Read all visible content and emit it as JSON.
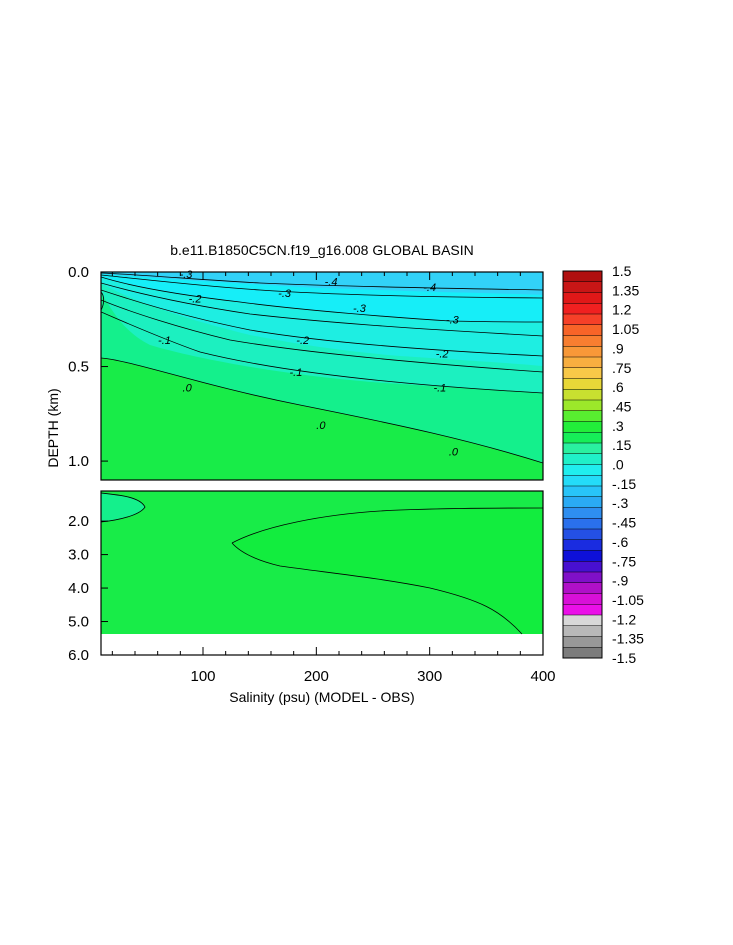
{
  "chart_data": {
    "type": "heatmap",
    "title": "b.e11.B1850C5CN.f19_g16.008 GLOBAL BASIN",
    "xlabel": "Salinity (psu) (MODEL - OBS)",
    "ylabel": "DEPTH (km)",
    "xlim": [
      10,
      400
    ],
    "x_ticks": [
      "100",
      "200",
      "300",
      "400"
    ],
    "x_tick_values": [
      100,
      200,
      300,
      400
    ],
    "upper_panel": {
      "ylim": [
        0.0,
        1.1
      ],
      "y_ticks": [
        "0.0",
        "0.5",
        "1.0"
      ],
      "y_tick_values": [
        0.0,
        0.5,
        1.0
      ]
    },
    "lower_panel": {
      "ylim": [
        1.1,
        6.0
      ],
      "y_ticks": [
        "2.0",
        "3.0",
        "4.0",
        "5.0",
        "6.0"
      ],
      "y_tick_values": [
        2.0,
        3.0,
        4.0,
        5.0,
        6.0
      ],
      "bottom_depth_km": 5.35
    },
    "contour_labels": [
      {
        "text": "-.3",
        "x": 85,
        "depth": 0.01
      },
      {
        "text": "-.4",
        "x": 213,
        "depth": 0.05
      },
      {
        "text": "-.4",
        "x": 300,
        "depth": 0.08
      },
      {
        "text": "-.3",
        "x": 172,
        "depth": 0.11
      },
      {
        "text": "-.3",
        "x": 238,
        "depth": 0.19
      },
      {
        "text": "-.3",
        "x": 320,
        "depth": 0.25
      },
      {
        "text": "-.2",
        "x": 93,
        "depth": 0.14
      },
      {
        "text": "-.2",
        "x": 188,
        "depth": 0.36
      },
      {
        "text": "-.2",
        "x": 311,
        "depth": 0.43
      },
      {
        "text": "-.1",
        "x": 66,
        "depth": 0.36
      },
      {
        "text": "-.1",
        "x": 182,
        "depth": 0.53
      },
      {
        "text": "-.1",
        "x": 309,
        "depth": 0.61
      },
      {
        "text": ".0",
        "x": 86,
        "depth": 0.61
      },
      {
        "text": ".0",
        "x": 204,
        "depth": 0.81
      },
      {
        "text": ".0",
        "x": 321,
        "depth": 0.95
      }
    ],
    "colorbar": {
      "labels": [
        "1.5",
        "1.35",
        "1.2",
        "1.05",
        ".9",
        ".75",
        ".6",
        ".45",
        ".3",
        ".15",
        ".0",
        "-.15",
        "-.3",
        "-.45",
        "-.6",
        "-.75",
        "-.9",
        "-1.05",
        "-1.2",
        "-1.35",
        "-1.5"
      ],
      "colors": [
        "#b01010",
        "#c81616",
        "#e01818",
        "#f02020",
        "#f64028",
        "#f86428",
        "#f87e30",
        "#f89838",
        "#f8ae40",
        "#f8c848",
        "#e8d838",
        "#c8e030",
        "#9ce82a",
        "#58ee30",
        "#22ee3a",
        "#16ee58",
        "#2af0a0",
        "#20f0c8",
        "#20eeee",
        "#24dcf8",
        "#28c4f8",
        "#2aaaf4",
        "#2e8ef0",
        "#2a70ec",
        "#2450e4",
        "#1a2ce0",
        "#0e10d8",
        "#4810d0",
        "#8010c8",
        "#b010c8",
        "#d810d8",
        "#ea10e8",
        "#d8d8d8",
        "#b8b8b8",
        "#989898",
        "#7c7c7c"
      ],
      "fill_colors": {
        "green_lt_0": "#18ec48",
        "green_0_015": "#12ed3e",
        "aqua_m01_0": "#14f08c",
        "teal_m02_m01": "#1cf0c0",
        "cyan_m03_m02": "#1eeee2",
        "cyan_m04_m03": "#16eef8",
        "sky_m045_m04": "#32d2f8"
      }
    }
  }
}
